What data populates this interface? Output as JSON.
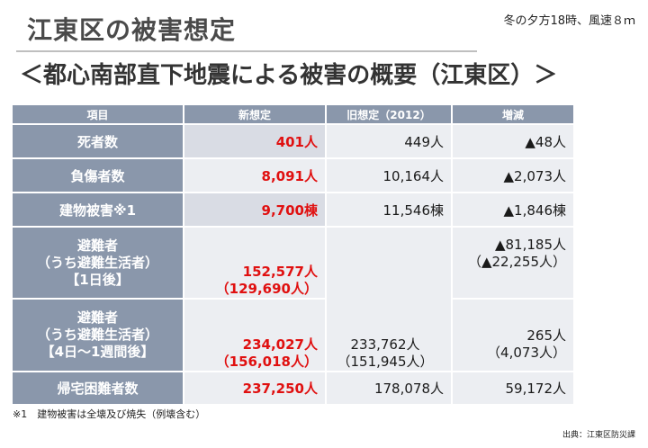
{
  "header": {
    "title": "江東区の被害想定",
    "note": "冬の夕方18時、風速８ｍ",
    "subtitle": "＜都心南部直下地震による被害の概要（江東区）＞"
  },
  "table": {
    "columns": [
      "項目",
      "新想定",
      "旧想定（2012）",
      "増減"
    ],
    "rows": [
      {
        "label": [
          "死者数"
        ],
        "new": [
          "401人"
        ],
        "old": [
          "449人"
        ],
        "diff": [
          "▲48人"
        ]
      },
      {
        "label": [
          "負傷者数"
        ],
        "new": [
          "8,091人"
        ],
        "old": [
          "10,164人"
        ],
        "diff": [
          "▲2,073人"
        ]
      },
      {
        "label": [
          "建物被害※1"
        ],
        "new": [
          "9,700棟"
        ],
        "old": [
          "11,546棟"
        ],
        "diff": [
          "▲1,846棟"
        ]
      },
      {
        "label": [
          "避難者",
          "（うち避難生活者）",
          "【1日後】"
        ],
        "new": [
          "152,577人",
          "（129,690人）"
        ],
        "diff": [
          "▲81,185人",
          "（▲22,255人）"
        ]
      },
      {
        "label": [
          "避難者",
          "（うち避難生活者）",
          "【4日～1週間後】"
        ],
        "new": [
          "234,027人",
          "（156,018人）"
        ],
        "diff": [
          "265人",
          "（4,073人）"
        ]
      },
      {
        "label": [
          "帰宅困難者数"
        ],
        "new": [
          "237,250人"
        ],
        "old": [
          "178,078人"
        ],
        "diff": [
          "59,172人"
        ]
      }
    ],
    "merged_old": [
      "233,762人",
      "（151,945人）"
    ]
  },
  "footnote": "※1　建物被害は全壊及び焼失（例壊含む）",
  "source": "出典：江東区防災課"
}
